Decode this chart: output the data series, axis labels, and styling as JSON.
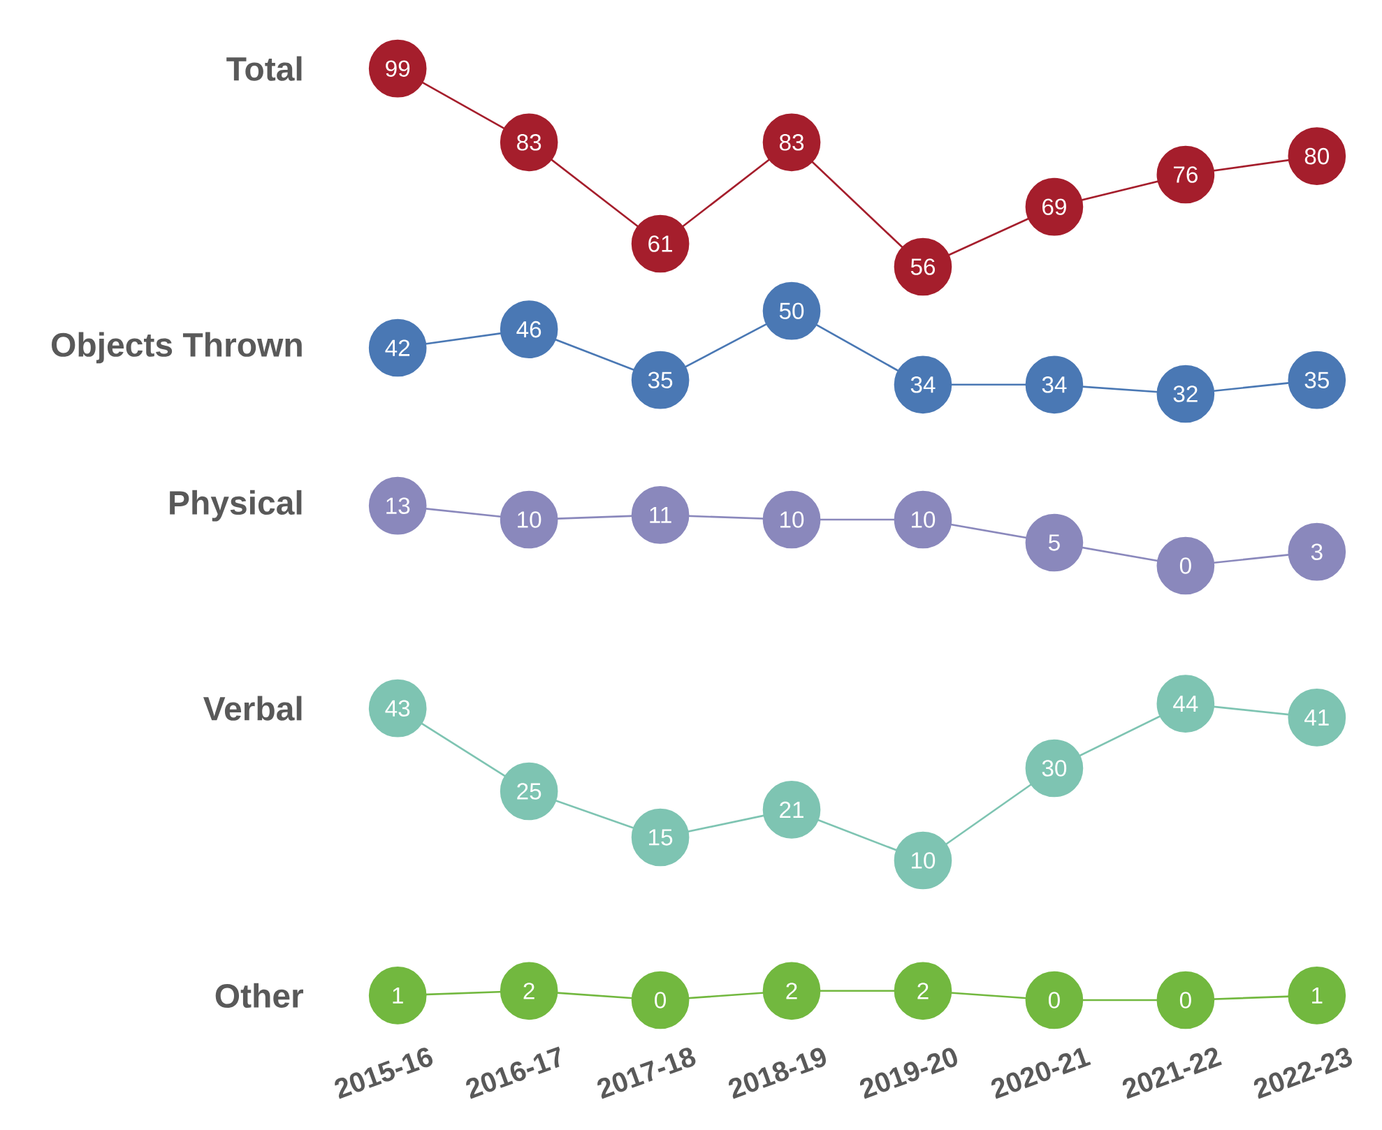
{
  "chart_data": [
    {
      "type": "line",
      "ylabel": "Total",
      "categories": [
        "2015-16",
        "2016-17",
        "2017-18",
        "2018-19",
        "2019-20",
        "2020-21",
        "2021-22",
        "2022-23"
      ],
      "series": [
        {
          "color": "#a51e2c",
          "values": [
            99,
            83,
            61,
            83,
            56,
            69,
            76,
            80
          ]
        }
      ],
      "data_labels": true,
      "marker": "circle",
      "tick_labels": false
    },
    {
      "type": "line",
      "ylabel": "Objects Thrown",
      "categories": [
        "2015-16",
        "2016-17",
        "2017-18",
        "2018-19",
        "2019-20",
        "2020-21",
        "2021-22",
        "2022-23"
      ],
      "series": [
        {
          "color": "#4a78b4",
          "values": [
            42,
            46,
            35,
            50,
            34,
            34,
            32,
            35
          ]
        }
      ],
      "data_labels": true,
      "marker": "circle",
      "tick_labels": false
    },
    {
      "type": "line",
      "ylabel": "Physical",
      "categories": [
        "2015-16",
        "2016-17",
        "2017-18",
        "2018-19",
        "2019-20",
        "2020-21",
        "2021-22",
        "2022-23"
      ],
      "series": [
        {
          "color": "#8a88bc",
          "values": [
            13,
            10,
            11,
            10,
            10,
            5,
            0,
            3
          ]
        }
      ],
      "data_labels": true,
      "marker": "circle",
      "tick_labels": false
    },
    {
      "type": "line",
      "ylabel": "Verbal",
      "categories": [
        "2015-16",
        "2016-17",
        "2017-18",
        "2018-19",
        "2019-20",
        "2020-21",
        "2021-22",
        "2022-23"
      ],
      "series": [
        {
          "color": "#7ec4b2",
          "values": [
            43,
            25,
            15,
            21,
            10,
            30,
            44,
            41
          ]
        }
      ],
      "data_labels": true,
      "marker": "circle",
      "tick_labels": false
    },
    {
      "type": "line",
      "ylabel": "Other",
      "categories": [
        "2015-16",
        "2016-17",
        "2017-18",
        "2018-19",
        "2019-20",
        "2020-21",
        "2021-22",
        "2022-23"
      ],
      "series": [
        {
          "color": "#72b83f",
          "values": [
            1,
            2,
            0,
            2,
            2,
            0,
            0,
            1
          ]
        }
      ],
      "data_labels": true,
      "marker": "circle",
      "tick_labels": "x"
    }
  ]
}
